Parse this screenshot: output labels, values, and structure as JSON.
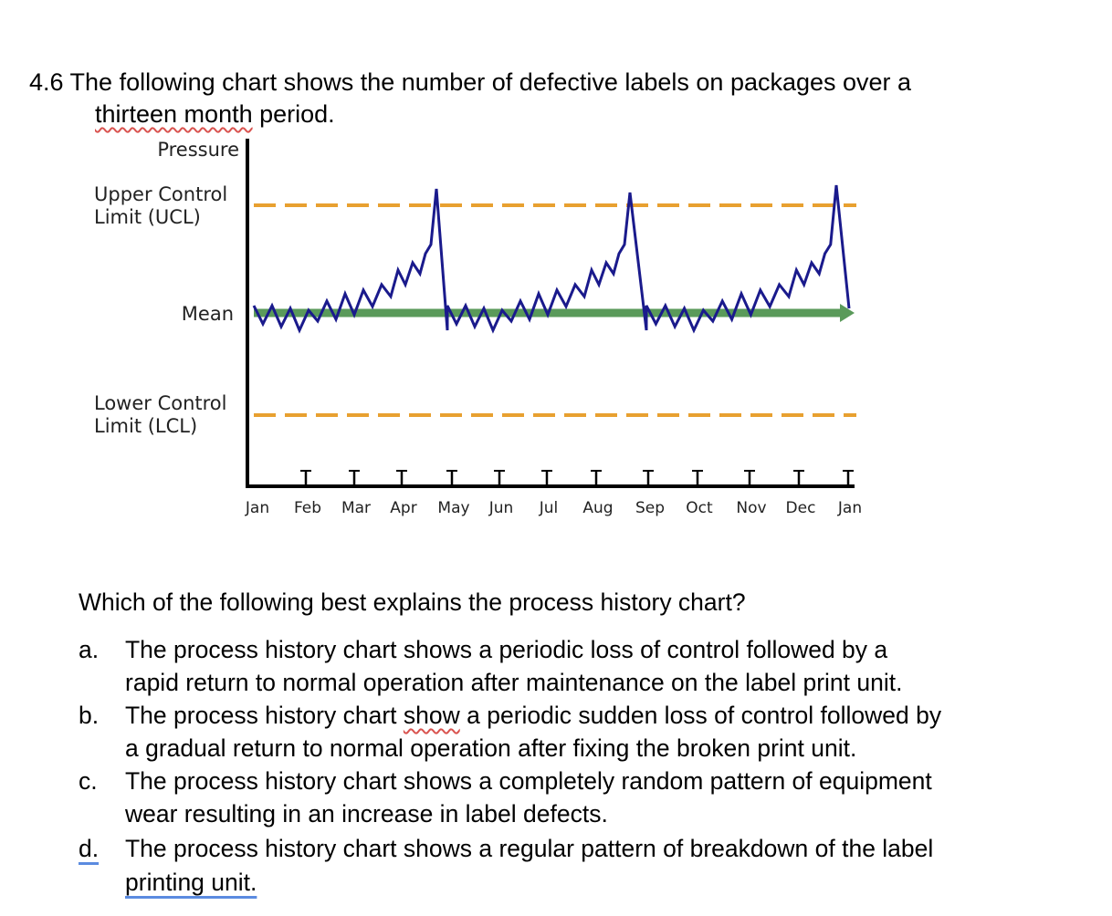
{
  "header": {
    "line1": "4.6 The following chart shows the number of defective labels on packages over a",
    "underlined": "thirteen month",
    "line2_rest": " period."
  },
  "figure": {
    "y_axis_label": "Pressure",
    "ucl_label": [
      "Upper Control",
      "Limit (UCL)"
    ],
    "mean_label": "Mean",
    "lcl_label": [
      "Lower Control",
      "Limit (LCL)"
    ],
    "months": [
      "Jan",
      "Feb",
      "Mar",
      "Apr",
      "May",
      "Jun",
      "Jul",
      "Aug",
      "Sep",
      "Oct",
      "Nov",
      "Dec",
      "Jan"
    ]
  },
  "question": {
    "prompt": "Which of the following best explains the process history chart?",
    "options": [
      {
        "letter": "a.",
        "lines": [
          "The process history chart shows a periodic loss of control followed by a",
          "rapid return to normal operation after maintenance on the label print unit."
        ]
      },
      {
        "letter": "b.",
        "line1_before": "The process history chart ",
        "line1_underlined": "show",
        "line1_after": " a periodic sudden loss of control followed by",
        "lines": [
          "a gradual return to normal operation after fixing the broken print unit."
        ]
      },
      {
        "letter": "c.",
        "lines": [
          "The process history chart shows a completely random pattern of equipment",
          "wear resulting in an increase in label defects."
        ]
      },
      {
        "letter": "d.",
        "lines": [
          "The process history chart shows a regular pattern of breakdown of the label",
          "printing unit."
        ]
      }
    ]
  }
}
